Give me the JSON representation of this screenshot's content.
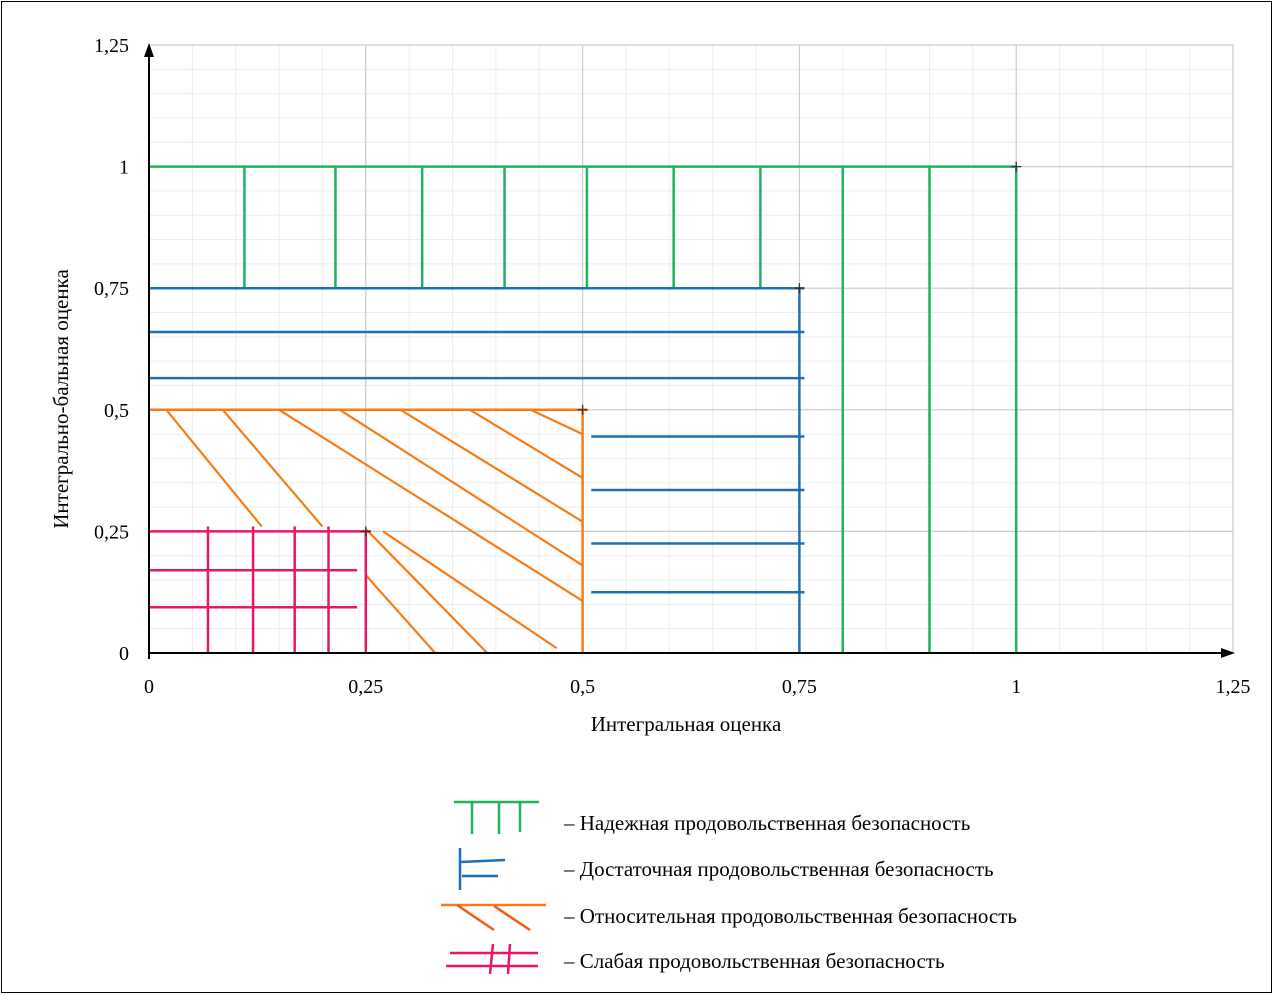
{
  "chart_data": {
    "type": "area",
    "title": "",
    "xlabel": "Интегральная оценка",
    "ylabel": "Интегрально-бальная оценка",
    "xlim": [
      0,
      1.25
    ],
    "ylim": [
      0,
      1.25
    ],
    "x_ticks": [
      "0",
      "0,25",
      "0,5",
      "0,75",
      "1",
      "1,25"
    ],
    "y_ticks": [
      "0",
      "0,25",
      "0,5",
      "0,75",
      "1",
      "1,25"
    ],
    "grid": true,
    "legend_position": "bottom",
    "series": [
      {
        "name": "– Надежная продовольственная безопасность",
        "color": "#1fb35c",
        "hatch": "vertical",
        "region_max": [
          1.0,
          1.0
        ]
      },
      {
        "name": "– Достаточная продовольственная безопасность",
        "color": "#1f6fb5",
        "hatch": "horizontal",
        "region_max": [
          0.75,
          0.75
        ]
      },
      {
        "name": "– Относительная продовольственная безопасность",
        "color": "#f57c16",
        "hatch": "diagonal",
        "region_max": [
          0.5,
          0.5
        ]
      },
      {
        "name": "– Слабая продовольственная безопасность",
        "color": "#e8156b",
        "hatch": "cross",
        "region_max": [
          0.25,
          0.25
        ]
      }
    ],
    "corner_points": [
      [
        0.25,
        0.25
      ],
      [
        0.5,
        0.5
      ],
      [
        0.75,
        0.75
      ],
      [
        1.0,
        1.0
      ]
    ]
  }
}
